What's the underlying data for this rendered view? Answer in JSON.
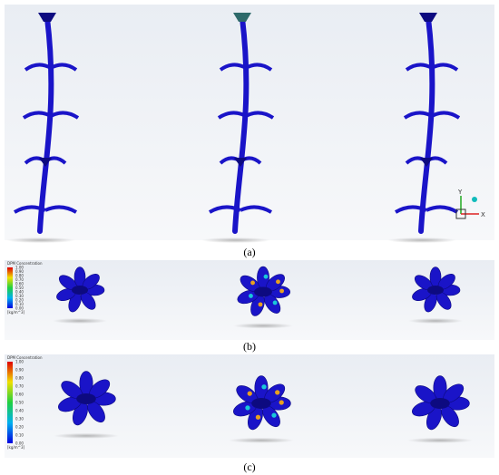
{
  "panels": [
    {
      "label": "(a)",
      "triad": {
        "y": "Y",
        "x": "X"
      }
    },
    {
      "label": "(b)",
      "colorbar": {
        "title": "DPM Concentration",
        "ticks": [
          "1.00",
          "0.90",
          "0.80",
          "0.70",
          "0.60",
          "0.50",
          "0.40",
          "0.30",
          "0.20",
          "0.10",
          "0.00"
        ],
        "unit": "[kg/m^3]"
      }
    },
    {
      "label": "(c)",
      "colorbar": {
        "title": "DPM Concentration",
        "ticks": [
          "1.00",
          "0.90",
          "0.80",
          "0.70",
          "0.60",
          "0.50",
          "0.40",
          "0.30",
          "0.20",
          "0.10",
          "0.00"
        ],
        "unit": "[kg/m^3]"
      }
    }
  ]
}
